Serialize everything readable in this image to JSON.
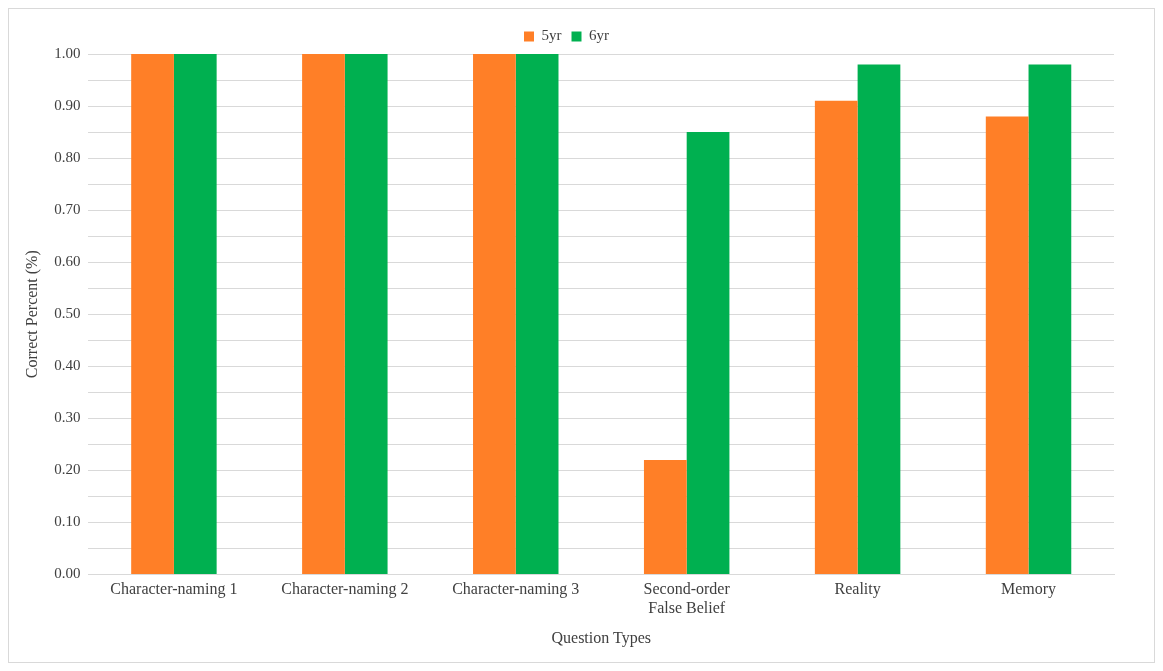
{
  "chart_data": {
    "type": "bar",
    "xlabel": "Question Types",
    "ylabel": "Correct Percent (%)",
    "categories": [
      "Character-naming 1",
      "Character-naming 2",
      "Character-naming 3",
      "Second-order False Belief",
      "Reality",
      "Memory"
    ],
    "series": [
      {
        "name": "5yr",
        "color": "#ff7f27",
        "values": [
          1.0,
          1.0,
          1.0,
          0.22,
          0.91,
          0.88
        ]
      },
      {
        "name": "6yr",
        "color": "#00b050",
        "values": [
          1.0,
          1.0,
          1.0,
          0.85,
          0.98,
          0.98
        ]
      }
    ],
    "ylim": [
      0,
      1
    ],
    "yticks": [
      {
        "value": 0,
        "label": "0.00"
      },
      {
        "value": 0.05,
        "label": null
      },
      {
        "value": 0.1,
        "label": "0.10"
      },
      {
        "value": 0.15,
        "label": null
      },
      {
        "value": 0.2,
        "label": "0.20"
      },
      {
        "value": 0.25,
        "label": null
      },
      {
        "value": 0.3,
        "label": "0.30"
      },
      {
        "value": 0.35,
        "label": null
      },
      {
        "value": 0.4,
        "label": "0.40"
      },
      {
        "value": 0.45,
        "label": null
      },
      {
        "value": 0.5,
        "label": "0.50"
      },
      {
        "value": 0.55,
        "label": null
      },
      {
        "value": 0.6,
        "label": "0.60"
      },
      {
        "value": 0.65,
        "label": null
      },
      {
        "value": 0.7,
        "label": "0.70"
      },
      {
        "value": 0.75,
        "label": null
      },
      {
        "value": 0.8,
        "label": "0.80"
      },
      {
        "value": 0.85,
        "label": null
      },
      {
        "value": 0.9,
        "label": "0.90"
      },
      {
        "value": 0.95,
        "label": null
      },
      {
        "value": 1,
        "label": "1.00"
      }
    ],
    "grid": "y",
    "legend": "top"
  }
}
